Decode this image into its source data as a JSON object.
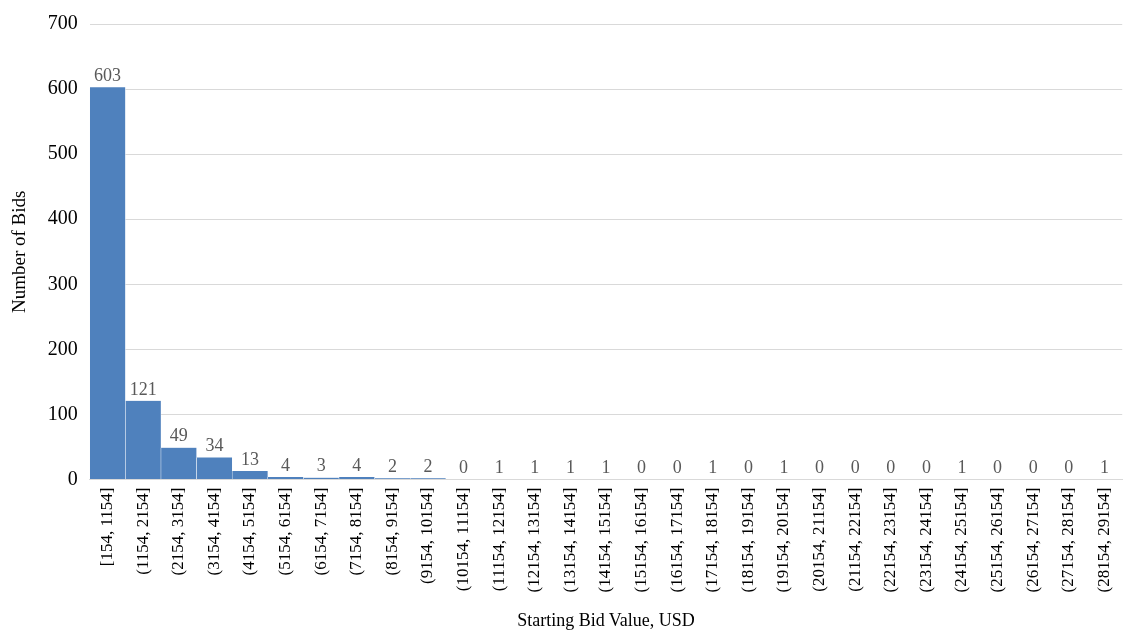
{
  "chart_data": {
    "type": "bar",
    "xlabel": "Starting Bid Value, USD",
    "ylabel": "Number of Bids",
    "categories": [
      "[154, 1154]",
      "(1154, 2154]",
      "(2154, 3154]",
      "(3154, 4154]",
      "(4154, 5154]",
      "(5154, 6154]",
      "(6154, 7154]",
      "(7154, 8154]",
      "(8154, 9154]",
      "(9154, 10154]",
      "(10154, 11154]",
      "(11154, 12154]",
      "(12154, 13154]",
      "(13154, 14154]",
      "(14154, 15154]",
      "(15154, 16154]",
      "(16154, 17154]",
      "(17154, 18154]",
      "(18154, 19154]",
      "(19154, 20154]",
      "(20154, 21154]",
      "(21154, 22154]",
      "(22154, 23154]",
      "(23154, 24154]",
      "(24154, 25154]",
      "(25154, 26154]",
      "(26154, 27154]",
      "(27154, 28154]",
      "(28154, 29154]"
    ],
    "values": [
      603,
      121,
      49,
      34,
      13,
      4,
      3,
      4,
      2,
      2,
      0,
      1,
      1,
      1,
      1,
      0,
      0,
      1,
      0,
      1,
      0,
      0,
      0,
      0,
      1,
      0,
      0,
      0,
      1
    ],
    "color": "#4f81bd",
    "ylim": [
      0,
      700
    ],
    "yticks": [
      0,
      100,
      200,
      300,
      400,
      500,
      600,
      700
    ],
    "grid": "y",
    "data_labels": true
  }
}
